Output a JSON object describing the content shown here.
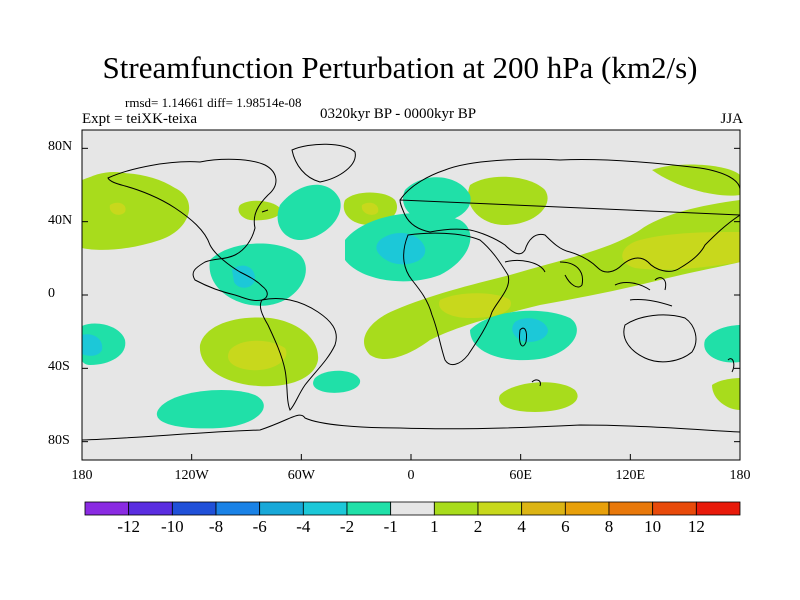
{
  "title": "Streamfunction Perturbation at 200 hPa (km2/s)",
  "stats": "rmsd= 1.14661 diff= 1.98514e-08",
  "experiment": "Expt = teiXK-teixa",
  "period": "0320kyr BP - 0000kyr BP",
  "season": "JJA",
  "map": {
    "projection": "cylindrical equidistant",
    "lon_range": [
      -180,
      180
    ],
    "lat_range": [
      -90,
      90
    ],
    "background_color": "#e6e6e6",
    "coastline_color": "#000000",
    "lat_ticks": [
      {
        "value": 80,
        "label": "80N"
      },
      {
        "value": 40,
        "label": "40N"
      },
      {
        "value": 0,
        "label": "0"
      },
      {
        "value": -40,
        "label": "40S"
      },
      {
        "value": -80,
        "label": "80S"
      }
    ],
    "lon_ticks": [
      {
        "value": -180,
        "label": "180"
      },
      {
        "value": -120,
        "label": "120W"
      },
      {
        "value": -60,
        "label": "60W"
      },
      {
        "value": 0,
        "label": "0"
      },
      {
        "value": 60,
        "label": "60E"
      },
      {
        "value": 120,
        "label": "120E"
      },
      {
        "value": 180,
        "label": "180"
      }
    ]
  },
  "colorbar": {
    "colors": [
      "#8a2be2",
      "#5a2de0",
      "#2050d8",
      "#1a82e6",
      "#18a8d8",
      "#1cc8d8",
      "#20e0a8",
      "#e6e6e6",
      "#a8dc1c",
      "#c8d81c",
      "#dcb414",
      "#e8a00a",
      "#e8780a",
      "#e84a0a",
      "#e81a0a"
    ],
    "labels": [
      "-12",
      "-10",
      "-8",
      "-6",
      "-4",
      "-2",
      "-1",
      "1",
      "2",
      "4",
      "6",
      "8",
      "10",
      "12"
    ]
  }
}
